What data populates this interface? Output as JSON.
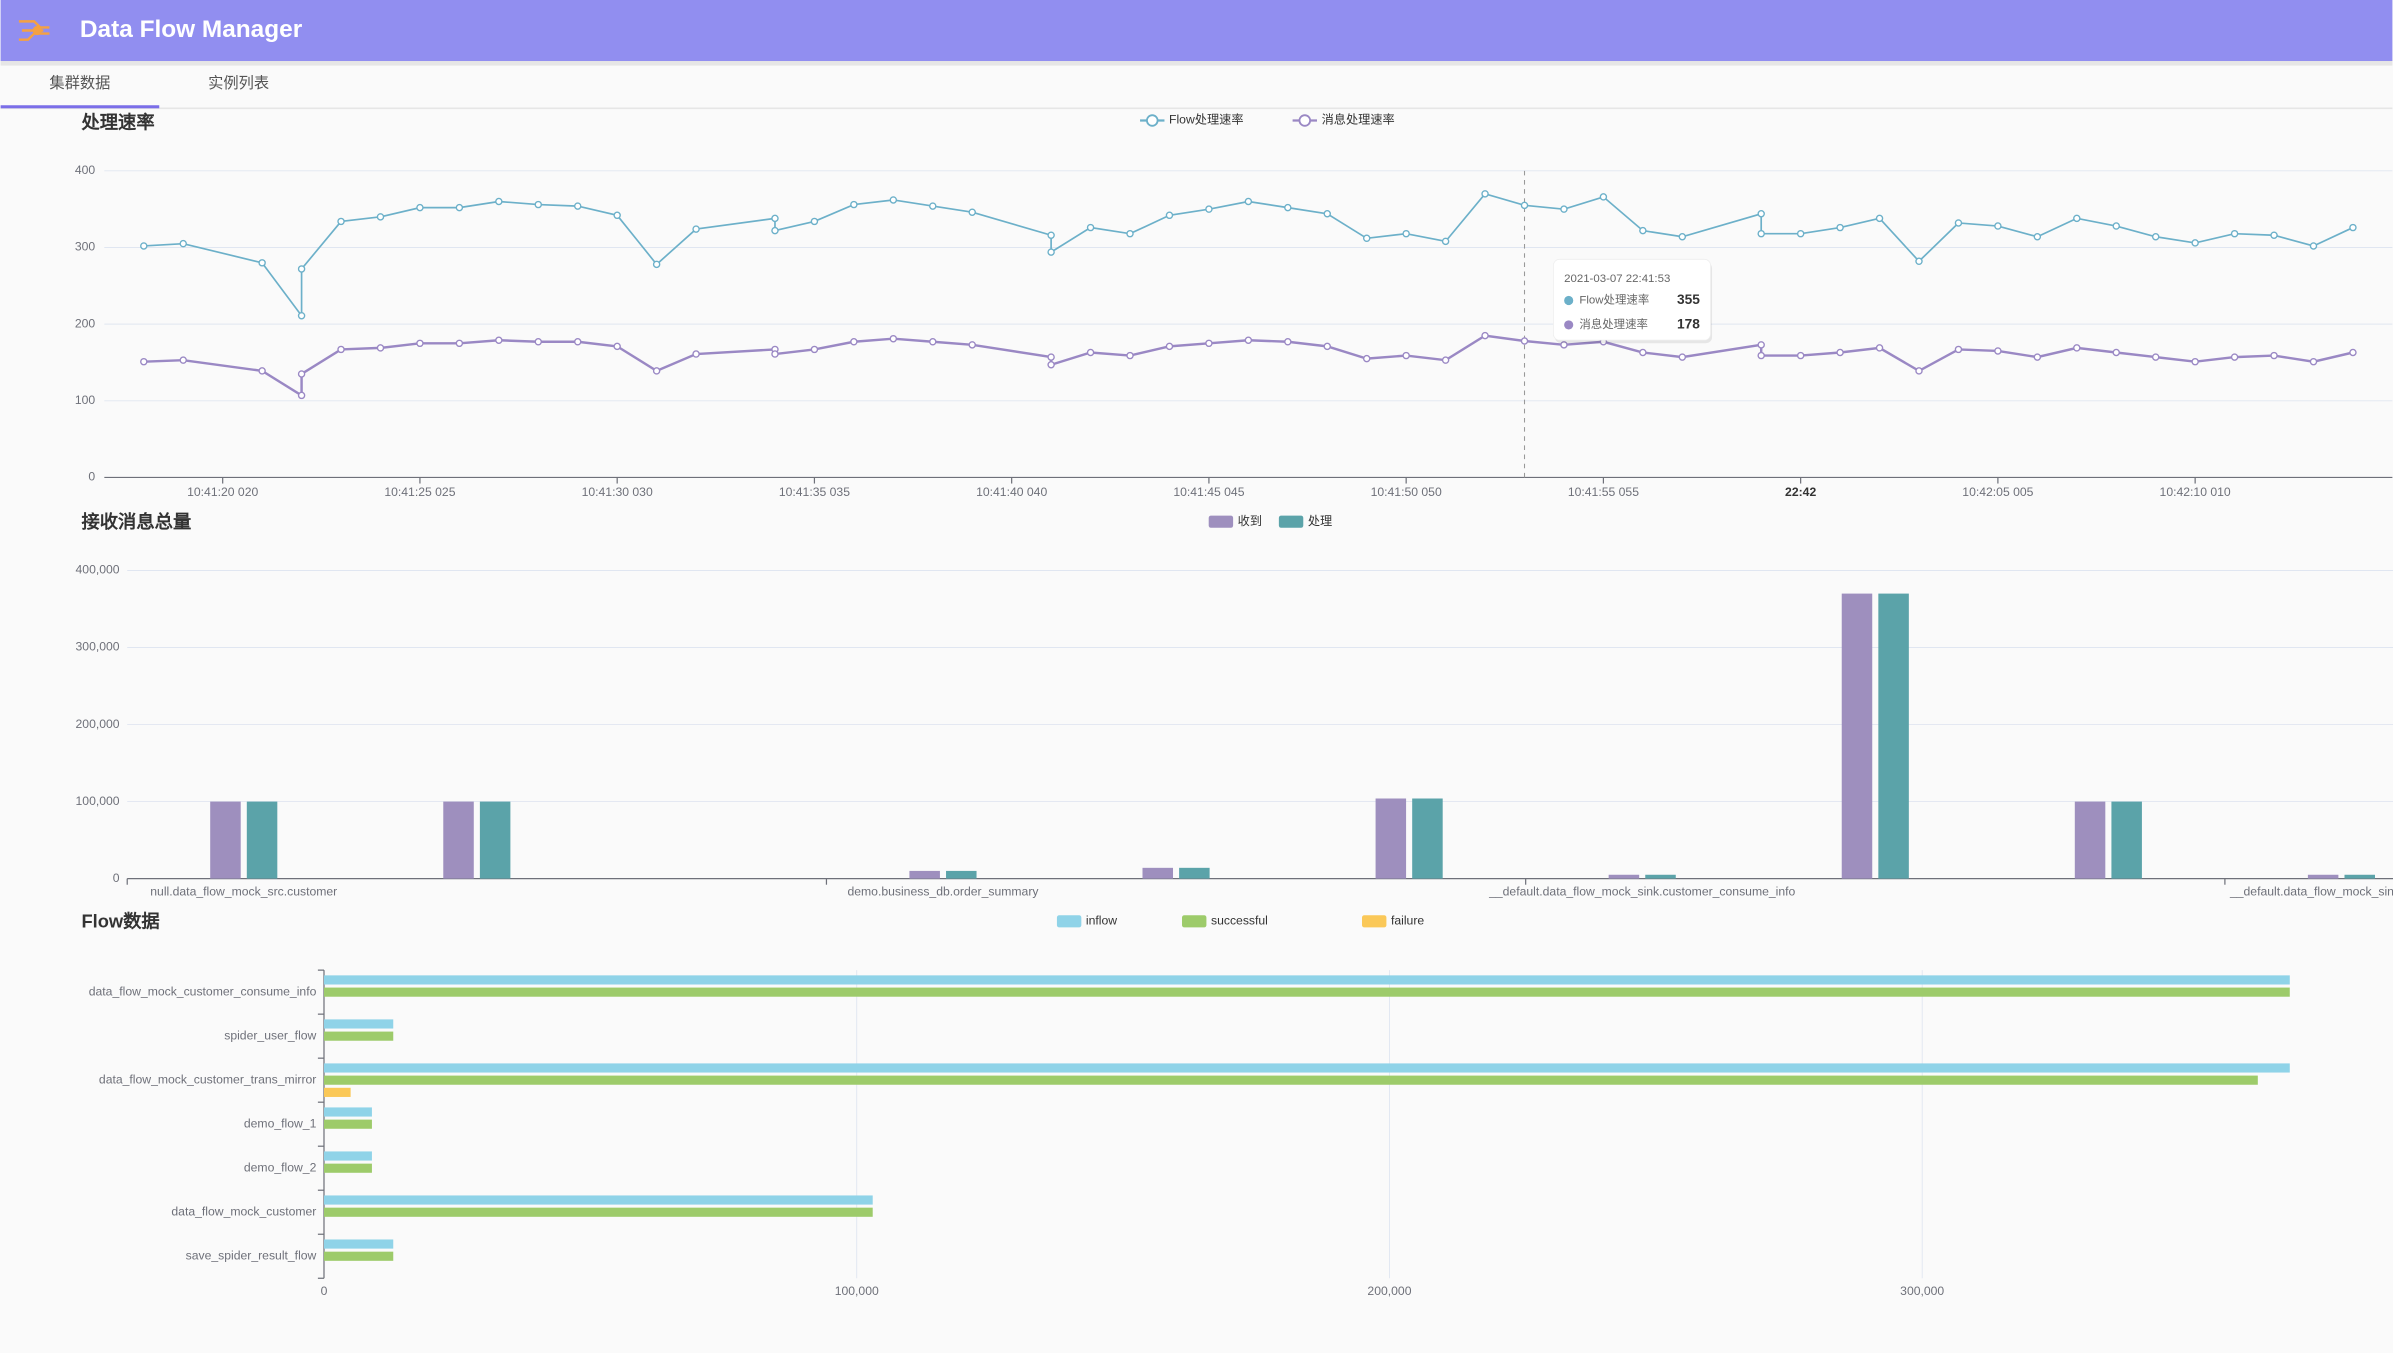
{
  "header": {
    "title": "Data Flow Manager"
  },
  "tabs": [
    "集群数据",
    "实例列表"
  ],
  "chart_data": [
    {
      "type": "line",
      "title": "处理速率",
      "legend": "top",
      "x": [
        "10:41:18",
        "10:41:19",
        "10:41:21",
        "10:41:22",
        "10:41:22",
        "10:41:23",
        "10:41:24",
        "10:41:25",
        "10:41:26",
        "10:41:27",
        "10:41:28",
        "10:41:29",
        "10:41:30",
        "10:41:31",
        "10:41:32",
        "10:41:34",
        "10:41:34",
        "10:41:35",
        "10:41:36",
        "10:41:37",
        "10:41:38",
        "10:41:39",
        "10:41:41",
        "10:41:41",
        "10:41:42",
        "10:41:43",
        "10:41:44",
        "10:41:45",
        "10:41:46",
        "10:41:47",
        "10:41:48",
        "10:41:49",
        "10:41:50",
        "10:41:51",
        "10:41:52",
        "10:41:53",
        "10:41:54",
        "10:41:55",
        "10:41:56",
        "10:41:57",
        "10:41:59",
        "10:41:59",
        "10:42:00",
        "10:42:01",
        "10:42:02",
        "10:42:03",
        "10:42:04",
        "10:42:05",
        "10:42:06",
        "10:42:07",
        "10:42:08",
        "10:42:09",
        "10:42:10",
        "10:42:11",
        "10:42:12",
        "10:42:13",
        "10:42:14"
      ],
      "series": [
        {
          "name": "Flow处理速率",
          "color": "#6cb0c9",
          "values": [
            302,
            305,
            280,
            211,
            272,
            334,
            340,
            352,
            352,
            360,
            356,
            354,
            342,
            278,
            324,
            338,
            322,
            334,
            356,
            362,
            354,
            346,
            316,
            294,
            326,
            318,
            342,
            350,
            360,
            352,
            344,
            312,
            318,
            308,
            370,
            355,
            350,
            366,
            322,
            314,
            344,
            318,
            318,
            326,
            338,
            282,
            332,
            328,
            314,
            338,
            328,
            314,
            306,
            318,
            316,
            302,
            326
          ]
        },
        {
          "name": "消息处理速率",
          "color": "#9a88c4",
          "values": [
            151,
            153,
            139,
            107,
            135,
            167,
            169,
            175,
            175,
            179,
            177,
            177,
            171,
            139,
            161,
            167,
            161,
            167,
            177,
            181,
            177,
            173,
            157,
            147,
            163,
            159,
            171,
            175,
            179,
            177,
            171,
            155,
            159,
            153,
            185,
            178,
            173,
            177,
            163,
            157,
            173,
            159,
            159,
            163,
            169,
            139,
            167,
            165,
            157,
            169,
            163,
            157,
            151,
            157,
            159,
            151,
            163
          ]
        }
      ],
      "xlim": [
        "10:41:17",
        "10:42:15"
      ],
      "xticks": [
        {
          "value": "10:41:20",
          "label": "10:41:20 020"
        },
        {
          "value": "10:41:25",
          "label": "10:41:25 025"
        },
        {
          "value": "10:41:30",
          "label": "10:41:30 030"
        },
        {
          "value": "10:41:35",
          "label": "10:41:35 035"
        },
        {
          "value": "10:41:40",
          "label": "10:41:40 040"
        },
        {
          "value": "10:41:45",
          "label": "10:41:45 045"
        },
        {
          "value": "10:41:50",
          "label": "10:41:50 050"
        },
        {
          "value": "10:41:55",
          "label": "10:41:55 055"
        },
        {
          "value": "10:42:00",
          "label": "22:42"
        },
        {
          "value": "10:42:05",
          "label": "10:42:05 005"
        },
        {
          "value": "10:42:10",
          "label": "10:42:10 010"
        }
      ],
      "ylim": [
        0,
        400
      ],
      "yticks": [
        0,
        100,
        200,
        300,
        400
      ],
      "grid": true,
      "tooltip": {
        "title": "2021-03-07 22:41:53",
        "values": [
          355,
          178
        ]
      }
    },
    {
      "type": "bar",
      "title": "接收消息总量",
      "legend": "top",
      "categories": [
        "null.data_flow_mock_src.customer",
        null,
        null,
        "demo.business_db.order_summary",
        null,
        null,
        "__default.data_flow_mock_sink.customer_consume_info",
        null,
        null,
        "__default.data_flow_mock_sink.origin_cu"
      ],
      "series": [
        {
          "name": "收到",
          "color": "#9e8fbe",
          "values": [
            100000,
            100000,
            0,
            10000,
            14000,
            104000,
            5000,
            370000,
            100000,
            5000
          ]
        },
        {
          "name": "处理",
          "color": "#5ba3a9",
          "values": [
            100000,
            100000,
            0,
            10000,
            14000,
            104000,
            5000,
            370000,
            100000,
            5000
          ]
        }
      ],
      "ylim": [
        0,
        400000
      ],
      "yticks": [
        0,
        {
          "value": 100000,
          "label": "100,000"
        },
        {
          "value": 200000,
          "label": "200,000"
        },
        {
          "value": 300000,
          "label": "300,000"
        },
        {
          "value": 400000,
          "label": "400,000"
        }
      ],
      "grid": true
    },
    {
      "type": "hbar",
      "title": "Flow数据",
      "legend": "top",
      "categories": [
        "data_flow_mock_customer_consume_info",
        "spider_user_flow",
        "data_flow_mock_customer_trans_mirror",
        "demo_flow_1",
        "demo_flow_2",
        "data_flow_mock_customer",
        "save_spider_result_flow"
      ],
      "series": [
        {
          "name": "inflow",
          "color": "#8fd3e8",
          "values": [
            369000,
            13000,
            369000,
            9000,
            9000,
            103000,
            13000
          ]
        },
        {
          "name": "successful",
          "color": "#9dcb6a",
          "values": [
            369000,
            13000,
            363000,
            9000,
            9000,
            103000,
            13000
          ]
        },
        {
          "name": "failure",
          "color": "#fac858",
          "values": [
            0,
            0,
            5000,
            0,
            0,
            0,
            0
          ]
        }
      ],
      "xlim": [
        0,
        400000
      ],
      "xticks": [
        0,
        {
          "value": 100000,
          "label": "100,000"
        },
        {
          "value": 200000,
          "label": "200,000"
        },
        {
          "value": 300000,
          "label": "300,000"
        }
      ],
      "grid": true
    }
  ]
}
